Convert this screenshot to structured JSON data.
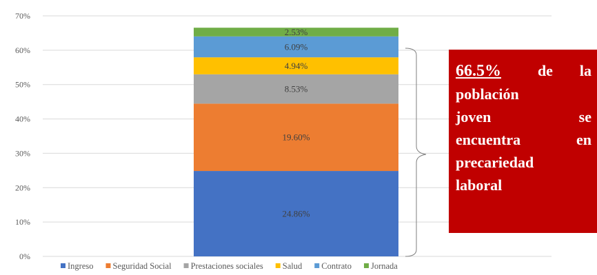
{
  "chart_data": {
    "type": "bar",
    "stacked": true,
    "categories": [
      ""
    ],
    "series": [
      {
        "name": "Ingreso",
        "values": [
          24.86
        ],
        "label": "24.86%",
        "color": "#4472c4"
      },
      {
        "name": "Seguridad Social",
        "values": [
          19.6
        ],
        "label": "19.60%",
        "color": "#ed7d31"
      },
      {
        "name": "Prestaciones sociales",
        "values": [
          8.53
        ],
        "label": "8.53%",
        "color": "#a5a5a5"
      },
      {
        "name": "Salud",
        "values": [
          4.94
        ],
        "label": "4.94%",
        "color": "#ffc000"
      },
      {
        "name": "Contrato",
        "values": [
          6.09
        ],
        "label": "6.09%",
        "color": "#5b9bd5"
      },
      {
        "name": "Jornada",
        "values": [
          2.53
        ],
        "label": "2.53%",
        "color": "#70ad47"
      }
    ],
    "ylim": [
      0,
      70
    ],
    "yticks": [
      "0%",
      "10%",
      "20%",
      "30%",
      "40%",
      "50%",
      "60%",
      "70%"
    ],
    "grid": true,
    "legend": "bottom"
  },
  "callout": {
    "percent": "66.5%",
    "lines": [
      [
        "de",
        "la"
      ],
      [
        "población"
      ],
      [
        "joven",
        "se"
      ],
      [
        "encuentra",
        "en"
      ],
      [
        "precariedad"
      ],
      [
        "laboral"
      ]
    ],
    "color": "#c00000"
  }
}
